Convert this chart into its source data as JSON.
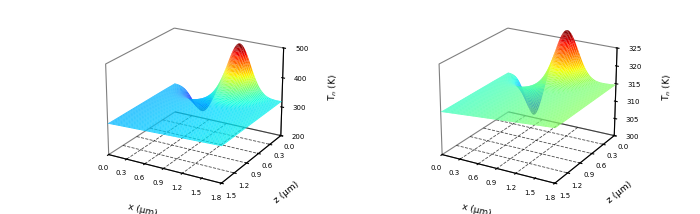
{
  "plot1": {
    "zlabel": "T$_n$ (K)",
    "xlabel": "x (μm)",
    "ylabel": "z (μm)",
    "zlim": [
      200,
      500
    ],
    "zticks": [
      200,
      300,
      400,
      500
    ],
    "xlim": [
      0.0,
      1.8
    ],
    "ylim": [
      0.0,
      1.5
    ],
    "xticks": [
      0.0,
      0.3,
      0.6,
      0.9,
      1.2,
      1.5,
      1.8
    ],
    "yticks": [
      0.0,
      0.3,
      0.6,
      0.9,
      1.2,
      1.5
    ],
    "cmap": "jet",
    "elev": 22,
    "azim": -60
  },
  "plot2": {
    "zlabel": "T$_n$ (K)",
    "xlabel": "x (μm)",
    "ylabel": "z (μm)",
    "zlim": [
      300,
      325
    ],
    "zticks": [
      300,
      305,
      310,
      315,
      320,
      325
    ],
    "xlim": [
      0.0,
      1.8
    ],
    "ylim": [
      0.0,
      1.5
    ],
    "xticks": [
      0.0,
      0.3,
      0.6,
      0.9,
      1.2,
      1.5,
      1.8
    ],
    "yticks": [
      0.0,
      0.3,
      0.6,
      0.9,
      1.2,
      1.5
    ],
    "cmap": "jet",
    "elev": 22,
    "azim": -60
  }
}
